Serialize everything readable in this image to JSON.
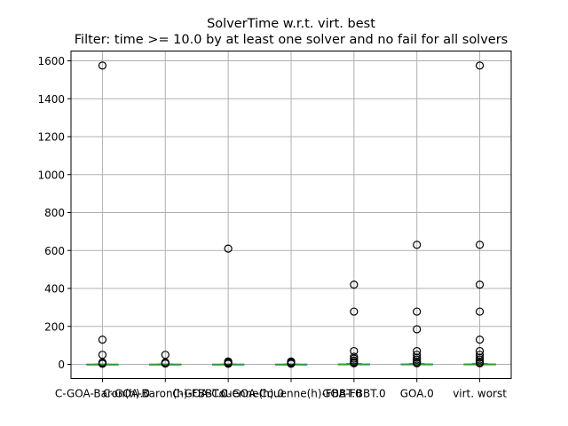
{
  "chart_data": {
    "type": "box",
    "title": "SolverTime w.r.t. virt. best",
    "subtitle": "Filter: time >= 10.0 by at least one solver and no fail for all solvers",
    "xlabel": "",
    "ylabel": "",
    "ylim": [
      -75,
      1640
    ],
    "yticks": [
      0,
      200,
      400,
      600,
      800,
      1000,
      1200,
      1400,
      1600
    ],
    "grid": true,
    "categories": [
      "C-GOA-Baron(h).0",
      "C-GOA-Baron(h)-FBBT.0",
      "C-GOA-Couenne(h).0",
      "C-GOA-Couenne(h)-FBBT.0",
      "GOA-FBBT.0",
      "GOA.0",
      "virt. worst"
    ],
    "boxes": [
      {
        "q1": 0,
        "median": 0,
        "q3": 1,
        "whislo": 0,
        "whishi": 2,
        "fliers": [
          1575,
          130,
          50,
          10,
          5,
          3
        ]
      },
      {
        "q1": 0,
        "median": 0,
        "q3": 1,
        "whislo": 0,
        "whishi": 2,
        "fliers": [
          50,
          10,
          6,
          4
        ]
      },
      {
        "q1": 0,
        "median": 0,
        "q3": 1,
        "whislo": 0,
        "whishi": 2,
        "fliers": [
          610,
          15,
          10,
          6,
          3
        ]
      },
      {
        "q1": 0,
        "median": 0,
        "q3": 1,
        "whislo": 0,
        "whishi": 2,
        "fliers": [
          15,
          10,
          5,
          3
        ]
      },
      {
        "q1": 0,
        "median": 0,
        "q3": 2,
        "whislo": 0,
        "whishi": 4,
        "fliers": [
          420,
          278,
          70,
          40,
          30,
          20,
          12,
          8,
          5
        ]
      },
      {
        "q1": 0,
        "median": 0,
        "q3": 2,
        "whislo": 0,
        "whishi": 4,
        "fliers": [
          630,
          278,
          185,
          70,
          50,
          35,
          25,
          15,
          8,
          5
        ]
      },
      {
        "q1": 0,
        "median": 0,
        "q3": 2,
        "whislo": 0,
        "whishi": 4,
        "fliers": [
          1575,
          630,
          420,
          278,
          130,
          70,
          50,
          35,
          25,
          15,
          8,
          5
        ]
      }
    ],
    "colors": {
      "box": "#1f77b4",
      "median": "#2ca02c",
      "flier": "#000000",
      "grid": "#b0b0b0"
    }
  }
}
